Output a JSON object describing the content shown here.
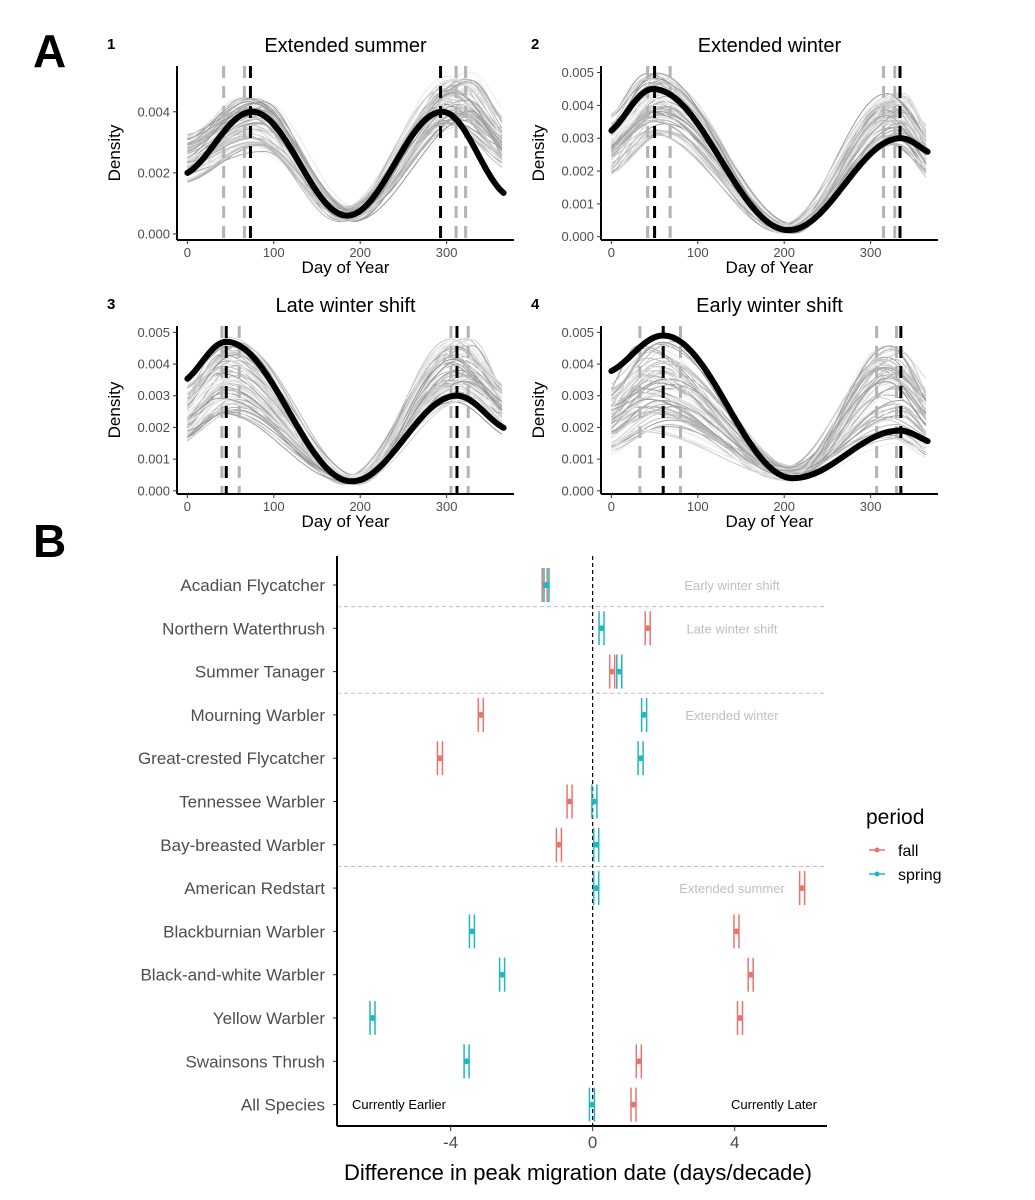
{
  "panel_labels": {
    "a": "A",
    "b": "B"
  },
  "chart_data": [
    {
      "type": "line",
      "panel": "A1",
      "index": "1",
      "title": "Extended summer",
      "xlabel": "Day of Year",
      "ylabel": "Density",
      "xlim": [
        -12,
        378
      ],
      "ylim": [
        -0.0002,
        0.0055
      ],
      "xticks": [
        "0",
        "100",
        "200",
        "300"
      ],
      "xtick_values": [
        0,
        100,
        200,
        300
      ],
      "yticks": [
        "0.000",
        "0.002",
        "0.004"
      ],
      "ytick_values": [
        0,
        0.002,
        0.004
      ],
      "bold_curve": {
        "peak1": 75,
        "peak1_y": 0.004,
        "trough": 185,
        "trough_y": 0.0006,
        "peak2": 295,
        "peak2_y": 0.004,
        "start_y": 0.0019,
        "end_y": 0.0012
      },
      "dashed_black": [
        73,
        293
      ],
      "dashed_gray": [
        42,
        66,
        311,
        322
      ],
      "ensemble": {
        "peak1": [
          62,
          90
        ],
        "peak1_y": [
          0.0027,
          0.0046
        ],
        "trough_y": [
          0.0004,
          0.0009
        ],
        "peak2": [
          296,
          330
        ],
        "peak2_y": [
          0.0035,
          0.0053
        ]
      }
    },
    {
      "type": "line",
      "panel": "A2",
      "index": "2",
      "title": "Extended winter",
      "xlabel": "Day of Year",
      "ylabel": "Density",
      "xlim": [
        -12,
        378
      ],
      "ylim": [
        -0.0001,
        0.0052
      ],
      "xticks": [
        "0",
        "100",
        "200",
        "300"
      ],
      "xtick_values": [
        0,
        100,
        200,
        300
      ],
      "yticks": [
        "0.000",
        "0.001",
        "0.002",
        "0.003",
        "0.004",
        "0.005"
      ],
      "ytick_values": [
        0,
        0.001,
        0.002,
        0.003,
        0.004,
        0.005
      ],
      "bold_curve": {
        "peak1": 48,
        "peak1_y": 0.0045,
        "trough": 205,
        "trough_y": 0.0002,
        "peak2": 335,
        "peak2_y": 0.003,
        "start_y": 0.0031,
        "end_y": 0.0025
      },
      "dashed_black": [
        50,
        334
      ],
      "dashed_gray": [
        42,
        68,
        315,
        328
      ],
      "ensemble": {
        "peak1": [
          40,
          65
        ],
        "peak1_y": [
          0.0031,
          0.005
        ],
        "trough_y": [
          0.0001,
          0.0004
        ],
        "peak2": [
          315,
          340
        ],
        "peak2_y": [
          0.0028,
          0.0044
        ]
      }
    },
    {
      "type": "line",
      "panel": "A3",
      "index": "3",
      "title": "Late winter shift",
      "xlabel": "Day of Year",
      "ylabel": "Density",
      "xlim": [
        -12,
        378
      ],
      "ylim": [
        -0.0001,
        0.0052
      ],
      "xticks": [
        "0",
        "100",
        "200",
        "300"
      ],
      "xtick_values": [
        0,
        100,
        200,
        300
      ],
      "yticks": [
        "0.000",
        "0.001",
        "0.002",
        "0.003",
        "0.004",
        "0.005"
      ],
      "ytick_values": [
        0,
        0.001,
        0.002,
        0.003,
        0.004,
        0.005
      ],
      "bold_curve": {
        "peak1": 45,
        "peak1_y": 0.0047,
        "trough": 190,
        "trough_y": 0.0003,
        "peak2": 312,
        "peak2_y": 0.003,
        "start_y": 0.0034,
        "end_y": 0.0019
      },
      "dashed_black": [
        45,
        312
      ],
      "dashed_gray": [
        40,
        60,
        305,
        325
      ],
      "ensemble": {
        "peak1": [
          35,
          60
        ],
        "peak1_y": [
          0.0024,
          0.0049
        ],
        "trough_y": [
          0.0002,
          0.0005
        ],
        "peak2": [
          300,
          330
        ],
        "peak2_y": [
          0.0028,
          0.0048
        ]
      }
    },
    {
      "type": "line",
      "panel": "A4",
      "index": "4",
      "title": "Early winter shift",
      "xlabel": "Day of Year",
      "ylabel": "Density",
      "xlim": [
        -12,
        378
      ],
      "ylim": [
        -0.0001,
        0.0052
      ],
      "xticks": [
        "0",
        "100",
        "200",
        "300"
      ],
      "xtick_values": [
        0,
        100,
        200,
        300
      ],
      "yticks": [
        "0.000",
        "0.001",
        "0.002",
        "0.003",
        "0.004",
        "0.005"
      ],
      "ytick_values": [
        0,
        0.001,
        0.002,
        0.003,
        0.004,
        0.005
      ],
      "bold_curve": {
        "peak1": 60,
        "peak1_y": 0.0049,
        "trough": 210,
        "trough_y": 0.0004,
        "peak2": 334,
        "peak2_y": 0.0019,
        "start_y": 0.0037,
        "end_y": 0.0015
      },
      "dashed_black": [
        60,
        335
      ],
      "dashed_gray": [
        33,
        80,
        307,
        330
      ],
      "ensemble": {
        "peak1": [
          30,
          75
        ],
        "peak1_y": [
          0.0018,
          0.0048
        ],
        "trough_y": [
          0.0003,
          0.0008
        ],
        "peak2": [
          310,
          340
        ],
        "peak2_y": [
          0.0014,
          0.0046
        ]
      }
    },
    {
      "type": "scatter",
      "panel": "B",
      "xlabel": "Difference in peak migration date (days/decade)",
      "xlim": [
        -7.2,
        6.6
      ],
      "xticks": [
        "-4",
        "0",
        "4"
      ],
      "xtick_values": [
        -4,
        0,
        4
      ],
      "categories": [
        "Acadian Flycatcher",
        "Northern Waterthrush",
        "Summer Tanager",
        "Mourning Warbler",
        "Great-crested Flycatcher",
        "Tennessee Warbler",
        "Bay-breasted Warbler",
        "American Redstart",
        "Blackburnian Warbler",
        "Black-and-white Warbler",
        "Yellow Warbler",
        "Swainsons Thrush",
        "All Species"
      ],
      "legend_title": "period",
      "legend_position": "right",
      "series": [
        {
          "name": "fall",
          "color": "#e8756d",
          "values": [
            -1.35,
            1.55,
            0.55,
            -3.15,
            -4.3,
            -0.65,
            -0.95,
            5.9,
            4.05,
            4.45,
            4.15,
            1.3,
            1.15
          ]
        },
        {
          "name": "spring",
          "color": "#1fb7c0",
          "values": [
            -1.3,
            0.25,
            0.75,
            1.45,
            1.35,
            0.05,
            0.1,
            0.1,
            -3.4,
            -2.55,
            -6.2,
            -3.55,
            -0.02
          ]
        }
      ],
      "group_labels": [
        "Early winter shift",
        "Late winter shift",
        "Extended winter",
        "Extended summer"
      ],
      "group_label_rows": [
        0,
        1,
        3,
        7
      ],
      "group_separators_after_rows": [
        0,
        2,
        6
      ],
      "corner_labels": {
        "left": "Currently Earlier",
        "right": "Currently Later"
      }
    }
  ]
}
